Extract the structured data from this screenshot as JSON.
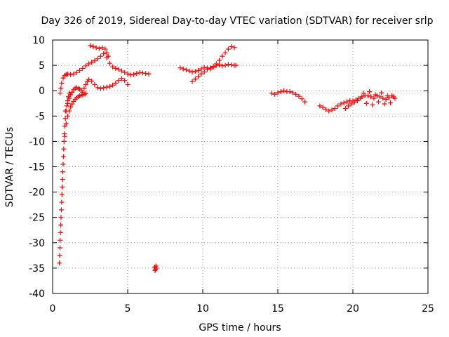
{
  "chart_data": {
    "type": "scatter",
    "title": "Day 326 of 2019, Sidereal Day-to-day VTEC variation (SDTVAR) for receiver srlp",
    "xlabel": "GPS time / hours",
    "ylabel": "SDTVAR / TECUs",
    "xlim": [
      0,
      25
    ],
    "ylim": [
      -40,
      10
    ],
    "xticks": [
      0,
      5,
      10,
      15,
      20,
      25
    ],
    "xtick_labels": [
      "0",
      "5",
      "10",
      "15",
      "20",
      "25"
    ],
    "yticks": [
      10,
      5,
      0,
      -5,
      -10,
      -15,
      -20,
      -25,
      -30,
      -35,
      -40
    ],
    "ytick_labels": [
      "10",
      "5",
      "0",
      "-5",
      "-10",
      "-15",
      "-20",
      "-25",
      "-30",
      "-35",
      "-40"
    ],
    "grid": true,
    "marker": "+",
    "series": [
      {
        "name": "upper arc",
        "color": "#ff0000",
        "x": [
          0.5,
          0.55,
          0.6,
          0.7,
          0.8,
          0.9,
          1.0,
          1.2,
          1.4,
          1.6,
          1.8,
          2.0,
          2.2,
          2.4,
          2.6,
          2.8,
          3.0,
          3.2,
          3.4,
          3.6,
          3.8,
          4.0,
          4.2,
          4.4,
          4.6,
          4.8,
          5.0,
          5.2,
          5.4,
          5.6,
          5.8,
          6.0,
          6.2,
          6.4
        ],
        "y": [
          -0.5,
          0.5,
          1.5,
          2.5,
          3.0,
          3.2,
          3.3,
          3.2,
          3.3,
          3.6,
          4.0,
          4.4,
          4.9,
          5.3,
          5.6,
          5.9,
          6.3,
          6.8,
          7.3,
          6.5,
          5.4,
          4.7,
          4.4,
          4.2,
          3.9,
          3.6,
          3.3,
          3.1,
          3.2,
          3.4,
          3.6,
          3.5,
          3.4,
          3.3
        ]
      },
      {
        "name": "peak arc",
        "color": "#ff0000",
        "x": [
          2.5,
          2.7,
          2.9,
          3.1,
          3.3,
          3.5,
          3.6,
          3.7
        ],
        "y": [
          8.9,
          8.7,
          8.5,
          8.3,
          8.5,
          8.2,
          7.5,
          6.8
        ]
      },
      {
        "name": "middle arc",
        "color": "#ff0000",
        "x": [
          0.85,
          1.0,
          1.1,
          1.2,
          1.3,
          1.4,
          1.5,
          1.6,
          1.7,
          1.8,
          1.9,
          2.0,
          2.1,
          2.2,
          2.3,
          2.4,
          2.6,
          2.8,
          3.0,
          3.2,
          3.4,
          3.6,
          3.8,
          4.0,
          4.2,
          4.4,
          4.6,
          4.8,
          5.0
        ],
        "y": [
          -4.0,
          -2.5,
          -1.5,
          -0.8,
          -0.3,
          0.2,
          0.5,
          0.6,
          0.5,
          0.3,
          0.0,
          -0.3,
          0.5,
          1.2,
          1.8,
          2.2,
          1.9,
          1.2,
          0.6,
          0.4,
          0.6,
          0.7,
          0.8,
          1.1,
          1.5,
          2.0,
          2.4,
          2.0,
          1.2
        ]
      },
      {
        "name": "lower arc",
        "color": "#ff0000",
        "x": [
          0.8,
          0.9,
          1.0,
          1.1,
          1.2,
          1.3,
          1.4,
          1.5,
          1.6,
          1.7,
          1.8,
          1.9,
          2.0,
          2.1,
          2.2
        ],
        "y": [
          -9.0,
          -6.5,
          -5.0,
          -4.0,
          -3.2,
          -2.6,
          -2.1,
          -1.7,
          -1.4,
          -1.2,
          -1.0,
          -0.9,
          -0.8,
          -0.7,
          -0.6
        ]
      },
      {
        "name": "descending tail",
        "color": "#ff0000",
        "x": [
          0.45,
          0.47,
          0.49,
          0.5,
          0.52,
          0.54,
          0.56,
          0.58,
          0.6,
          0.62,
          0.64,
          0.66,
          0.68,
          0.7,
          0.72,
          0.74,
          0.76,
          0.78,
          0.8,
          0.85,
          0.9,
          0.95,
          1.0,
          1.05,
          1.1
        ],
        "y": [
          -34.0,
          -32.5,
          -31.0,
          -29.5,
          -28.0,
          -26.5,
          -25.0,
          -23.5,
          -22.0,
          -20.5,
          -19.0,
          -17.5,
          -16.0,
          -14.5,
          -13.0,
          -11.5,
          -10.0,
          -8.5,
          -7.0,
          -5.5,
          -4.0,
          -3.0,
          -2.0,
          -1.2,
          -0.5
        ]
      },
      {
        "name": "isolated cluster",
        "color": "#ff0000",
        "x": [
          6.8,
          6.85,
          6.9,
          6.82,
          6.88
        ],
        "y": [
          -34.8,
          -35.2,
          -35.0,
          -35.5,
          -34.6
        ]
      },
      {
        "name": "segment 9-12h",
        "color": "#ff0000",
        "x": [
          8.5,
          8.7,
          8.9,
          9.1,
          9.3,
          9.5,
          9.7,
          9.9,
          10.1,
          10.3,
          10.5,
          10.7,
          10.9,
          11.1,
          11.3,
          11.5,
          11.7,
          11.9,
          12.1,
          12.2
        ],
        "y": [
          4.5,
          4.3,
          4.1,
          3.9,
          3.7,
          3.8,
          4.0,
          4.3,
          4.6,
          4.5,
          4.3,
          4.6,
          5.0,
          5.1,
          4.9,
          5.0,
          5.2,
          5.1,
          5.0,
          5.0
        ]
      },
      {
        "name": "segment 9-12h rising",
        "color": "#ff0000",
        "x": [
          9.3,
          9.5,
          9.7,
          9.9,
          10.1,
          10.3,
          10.5,
          10.7,
          10.9,
          11.1,
          11.3,
          11.5,
          11.7,
          11.9,
          12.1
        ],
        "y": [
          1.8,
          2.3,
          2.8,
          3.3,
          3.7,
          4.2,
          4.5,
          4.8,
          5.3,
          6.0,
          6.8,
          7.5,
          8.2,
          8.7,
          8.5
        ]
      },
      {
        "name": "segment 15-17h",
        "color": "#ff0000",
        "x": [
          14.6,
          14.8,
          15.0,
          15.2,
          15.4,
          15.6,
          15.8,
          16.0,
          16.2,
          16.4,
          16.6,
          16.8
        ],
        "y": [
          -0.5,
          -0.7,
          -0.4,
          -0.2,
          0.0,
          -0.2,
          -0.2,
          -0.4,
          -0.7,
          -1.1,
          -1.6,
          -2.2
        ]
      },
      {
        "name": "segment 18-23h",
        "color": "#ff0000",
        "x": [
          17.8,
          18.0,
          18.2,
          18.4,
          18.6,
          18.8,
          19.0,
          19.2,
          19.4,
          19.6,
          19.8,
          20.0,
          20.2,
          20.4,
          20.6,
          20.8,
          21.0,
          21.2,
          21.4,
          21.6,
          21.8,
          22.0,
          22.2,
          22.4,
          22.6,
          22.8
        ],
        "y": [
          -3.0,
          -3.3,
          -3.7,
          -4.0,
          -3.8,
          -3.5,
          -3.0,
          -2.6,
          -2.4,
          -2.2,
          -2.0,
          -2.0,
          -1.8,
          -1.5,
          -1.2,
          -1.0,
          -1.0,
          -1.2,
          -1.5,
          -1.0,
          -1.2,
          -1.5,
          -1.7,
          -1.4,
          -1.0,
          -1.5
        ]
      },
      {
        "name": "segment 19.5-23h scatter",
        "color": "#ff0000",
        "x": [
          19.5,
          19.7,
          19.9,
          20.1,
          20.3,
          20.5,
          20.7,
          20.9,
          21.1,
          21.3,
          21.5,
          21.7,
          21.9,
          22.1,
          22.3,
          22.5,
          22.7
        ],
        "y": [
          -3.5,
          -3.0,
          -2.6,
          -2.3,
          -2.0,
          -1.5,
          -0.5,
          -2.5,
          -0.2,
          -2.8,
          -0.8,
          -2.2,
          -0.4,
          -2.6,
          -1.0,
          -2.4,
          -1.2
        ]
      }
    ]
  }
}
